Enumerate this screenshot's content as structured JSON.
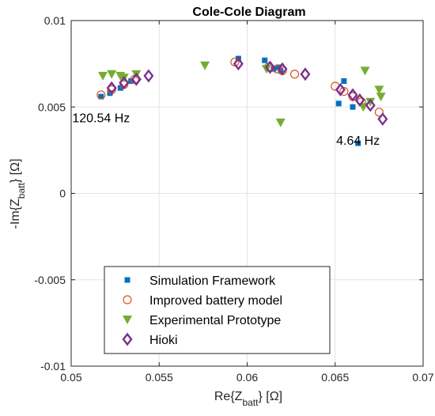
{
  "chart_data": {
    "type": "scatter",
    "title": "Cole-Cole Diagram",
    "xlabel": {
      "main": "Re{Z",
      "sub": "batt",
      "tail": "} [Ω]"
    },
    "ylabel": {
      "main": "-Im{Z",
      "sub": "batt",
      "tail": "} [Ω]"
    },
    "xlim": [
      0.05,
      0.07
    ],
    "ylim": [
      -0.01,
      0.01
    ],
    "xticks": [
      0.05,
      0.055,
      0.06,
      0.065,
      0.07
    ],
    "xtick_labels": [
      "0.05",
      "0.055",
      "0.06",
      "0.065",
      "0.07"
    ],
    "yticks": [
      -0.01,
      -0.005,
      0,
      0.005,
      0.01
    ],
    "ytick_labels": [
      "-0.01",
      "-0.005",
      "0",
      "0.005",
      "0.01"
    ],
    "grid": true,
    "legend_position": "bottom-center",
    "annotations": [
      {
        "text": "120.54 Hz",
        "x": 0.0517,
        "y": 0.0044
      },
      {
        "text": "4.64 Hz",
        "x": 0.0663,
        "y": 0.0031
      }
    ],
    "series": [
      {
        "name": "Simulation Framework",
        "marker": "square",
        "color": "#0072BD",
        "points": [
          [
            0.0517,
            0.0056
          ],
          [
            0.0522,
            0.0058
          ],
          [
            0.0528,
            0.0061
          ],
          [
            0.0534,
            0.0065
          ],
          [
            0.0595,
            0.0078
          ],
          [
            0.061,
            0.0077
          ],
          [
            0.0615,
            0.0072
          ],
          [
            0.0618,
            0.0073
          ],
          [
            0.0619,
            0.0071
          ],
          [
            0.0652,
            0.0052
          ],
          [
            0.0655,
            0.0065
          ],
          [
            0.066,
            0.005
          ],
          [
            0.0663,
            0.0029
          ]
        ]
      },
      {
        "name": "Improved battery model",
        "marker": "circle",
        "color": "#D95319",
        "points": [
          [
            0.0517,
            0.0057
          ],
          [
            0.0523,
            0.006
          ],
          [
            0.053,
            0.0063
          ],
          [
            0.0536,
            0.0066
          ],
          [
            0.0593,
            0.0076
          ],
          [
            0.0612,
            0.0073
          ],
          [
            0.0617,
            0.0072
          ],
          [
            0.062,
            0.0071
          ],
          [
            0.0627,
            0.0069
          ],
          [
            0.065,
            0.0062
          ],
          [
            0.0655,
            0.0059
          ],
          [
            0.066,
            0.0056
          ],
          [
            0.0665,
            0.0053
          ],
          [
            0.0675,
            0.0047
          ]
        ]
      },
      {
        "name": "Experimental Prototype",
        "marker": "triangle-down",
        "color": "#77AC30",
        "points": [
          [
            0.0518,
            0.0068
          ],
          [
            0.0523,
            0.0069
          ],
          [
            0.0528,
            0.0068
          ],
          [
            0.053,
            0.0067
          ],
          [
            0.0537,
            0.0069
          ],
          [
            0.0576,
            0.0074
          ],
          [
            0.0611,
            0.0072
          ],
          [
            0.0619,
            0.0041
          ],
          [
            0.0666,
            0.005
          ],
          [
            0.0667,
            0.0071
          ],
          [
            0.067,
            0.0053
          ],
          [
            0.0675,
            0.006
          ],
          [
            0.0676,
            0.0056
          ]
        ]
      },
      {
        "name": "Hioki",
        "marker": "diamond",
        "color": "#7E2F8E",
        "points": [
          [
            0.0523,
            0.0061
          ],
          [
            0.053,
            0.0064
          ],
          [
            0.0537,
            0.0066
          ],
          [
            0.0544,
            0.0068
          ],
          [
            0.0595,
            0.0075
          ],
          [
            0.0613,
            0.0073
          ],
          [
            0.062,
            0.0072
          ],
          [
            0.0633,
            0.0069
          ],
          [
            0.0653,
            0.006
          ],
          [
            0.066,
            0.0057
          ],
          [
            0.0664,
            0.0054
          ],
          [
            0.067,
            0.0051
          ],
          [
            0.0677,
            0.0043
          ]
        ]
      }
    ]
  }
}
